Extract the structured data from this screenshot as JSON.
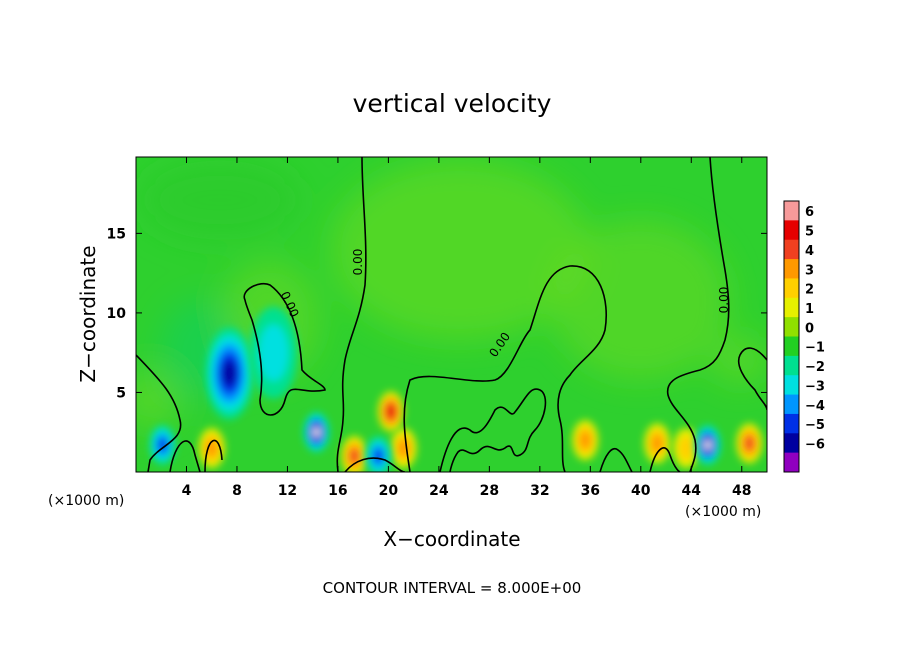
{
  "chart_data": {
    "type": "heatmap",
    "title": "vertical velocity",
    "xlabel": "X−coordinate",
    "ylabel": "Z−coordinate",
    "x_unit_label": "(×1000 m)",
    "x_ticks": [
      4,
      8,
      12,
      16,
      20,
      24,
      28,
      32,
      36,
      40,
      44,
      48
    ],
    "y_ticks": [
      5,
      10,
      15
    ],
    "xlim": [
      0,
      50
    ],
    "ylim": [
      0,
      19.8
    ],
    "grid": false,
    "footer": "CONTOUR INTERVAL = 8.000E+00",
    "contour_label": "0.00",
    "colorbar": {
      "levels": [
        "6",
        "5",
        "4",
        "3",
        "2",
        "1",
        "0",
        "−1",
        "−2",
        "−3",
        "−4",
        "−5",
        "−6"
      ],
      "colors": [
        "#f79a9a",
        "#e60000",
        "#f04020",
        "#ff9900",
        "#ffd000",
        "#e6f000",
        "#90e000",
        "#22d022",
        "#00e090",
        "#00e0e0",
        "#0096ff",
        "#0030e6",
        "#0000a0",
        "#9000c0"
      ]
    },
    "features": [
      {
        "kind": "updraft",
        "x": 6,
        "z": 1.5,
        "value": 3
      },
      {
        "kind": "updraft",
        "x": 17.3,
        "z": 1.0,
        "value": 4
      },
      {
        "kind": "updraft",
        "x": 20.2,
        "z": 3.8,
        "value": 5
      },
      {
        "kind": "updraft",
        "x": 21.2,
        "z": 1.5,
        "value": 3
      },
      {
        "kind": "updraft",
        "x": 35.6,
        "z": 2.0,
        "value": 3
      },
      {
        "kind": "updraft",
        "x": 41.3,
        "z": 1.8,
        "value": 3
      },
      {
        "kind": "updraft",
        "x": 43.6,
        "z": 1.5,
        "value": 2
      },
      {
        "kind": "updraft",
        "x": 48.6,
        "z": 1.8,
        "value": 4
      },
      {
        "kind": "downdraft",
        "x": 7.4,
        "z": 6.2,
        "value": -5
      },
      {
        "kind": "downdraft",
        "x": 2.1,
        "z": 1.7,
        "value": -4
      },
      {
        "kind": "downdraft",
        "x": 14.3,
        "z": 2.5,
        "value": -6
      },
      {
        "kind": "downdraft",
        "x": 19.2,
        "z": 1.0,
        "value": -4
      },
      {
        "kind": "downdraft",
        "x": 45.3,
        "z": 1.7,
        "value": -6
      },
      {
        "kind": "downdraft",
        "x": 10.9,
        "z": 7.5,
        "value": -2
      }
    ]
  }
}
